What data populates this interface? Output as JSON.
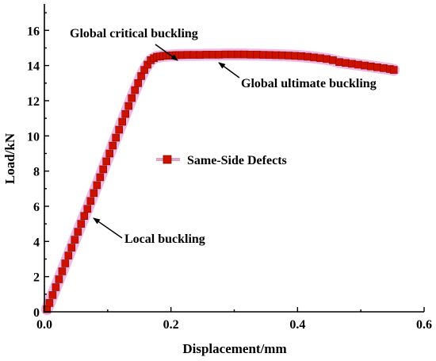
{
  "chart_data": {
    "type": "line",
    "xlabel": "Displacement/mm",
    "ylabel": "Load/kN",
    "xlim": [
      0,
      0.6
    ],
    "ylim": [
      0,
      17.5
    ],
    "xticks": [
      {
        "v": 0,
        "label": "0.0"
      },
      {
        "v": 0.2,
        "label": "0.2"
      },
      {
        "v": 0.4,
        "label": "0.4"
      },
      {
        "v": 0.6,
        "label": "0.6"
      }
    ],
    "yticks": [
      {
        "v": 0,
        "label": "0"
      },
      {
        "v": 2,
        "label": "2"
      },
      {
        "v": 4,
        "label": "4"
      },
      {
        "v": 6,
        "label": "6"
      },
      {
        "v": 8,
        "label": "8"
      },
      {
        "v": 10,
        "label": "10"
      },
      {
        "v": 12,
        "label": "12"
      },
      {
        "v": 14,
        "label": "14"
      },
      {
        "v": 16,
        "label": "16"
      }
    ],
    "grid": false,
    "legend": "center",
    "series": [
      {
        "name": "Same-Side Defects",
        "color": "#cc1100",
        "halo_color": "#f2b8e4",
        "marker": "square",
        "x": [
          0.004,
          0.008,
          0.013,
          0.018,
          0.023,
          0.028,
          0.033,
          0.038,
          0.043,
          0.048,
          0.053,
          0.058,
          0.063,
          0.068,
          0.073,
          0.078,
          0.083,
          0.088,
          0.093,
          0.098,
          0.103,
          0.108,
          0.113,
          0.118,
          0.123,
          0.128,
          0.133,
          0.138,
          0.143,
          0.148,
          0.153,
          0.158,
          0.163,
          0.168,
          0.173,
          0.178,
          0.183,
          0.188,
          0.193,
          0.198,
          0.203,
          0.208,
          0.213,
          0.218,
          0.226,
          0.236,
          0.246,
          0.256,
          0.266,
          0.276,
          0.286,
          0.296,
          0.306,
          0.316,
          0.326,
          0.336,
          0.346,
          0.356,
          0.366,
          0.376,
          0.386,
          0.396,
          0.406,
          0.416,
          0.426,
          0.436,
          0.446,
          0.456,
          0.466,
          0.476,
          0.486,
          0.496,
          0.506,
          0.516,
          0.526,
          0.536,
          0.546,
          0.552
        ],
        "y": [
          0.15,
          0.5,
          0.95,
          1.4,
          1.85,
          2.3,
          2.75,
          3.2,
          3.65,
          4.1,
          4.55,
          5.0,
          5.45,
          5.85,
          6.3,
          6.75,
          7.2,
          7.65,
          8.1,
          8.55,
          9.0,
          9.45,
          9.9,
          10.35,
          10.8,
          11.25,
          11.7,
          12.15,
          12.6,
          13.0,
          13.4,
          13.75,
          14.05,
          14.3,
          14.42,
          14.5,
          14.52,
          14.55,
          14.56,
          14.57,
          14.58,
          14.59,
          14.6,
          14.6,
          14.61,
          14.61,
          14.61,
          14.62,
          14.62,
          14.62,
          14.63,
          14.63,
          14.63,
          14.63,
          14.62,
          14.62,
          14.61,
          14.6,
          14.59,
          14.58,
          14.57,
          14.55,
          14.53,
          14.5,
          14.46,
          14.42,
          14.37,
          14.3,
          14.2,
          14.15,
          14.1,
          14.05,
          14.0,
          13.95,
          13.9,
          13.85,
          13.8,
          13.75
        ]
      }
    ],
    "annotations": [
      {
        "text": "Global critical buckling",
        "x": 0.213,
        "y": 14.4
      },
      {
        "text": "Global ultimate buckling",
        "x": 0.275,
        "y": 14.6
      },
      {
        "text": "Local buckling",
        "x": 0.075,
        "y": 5.45
      }
    ]
  }
}
